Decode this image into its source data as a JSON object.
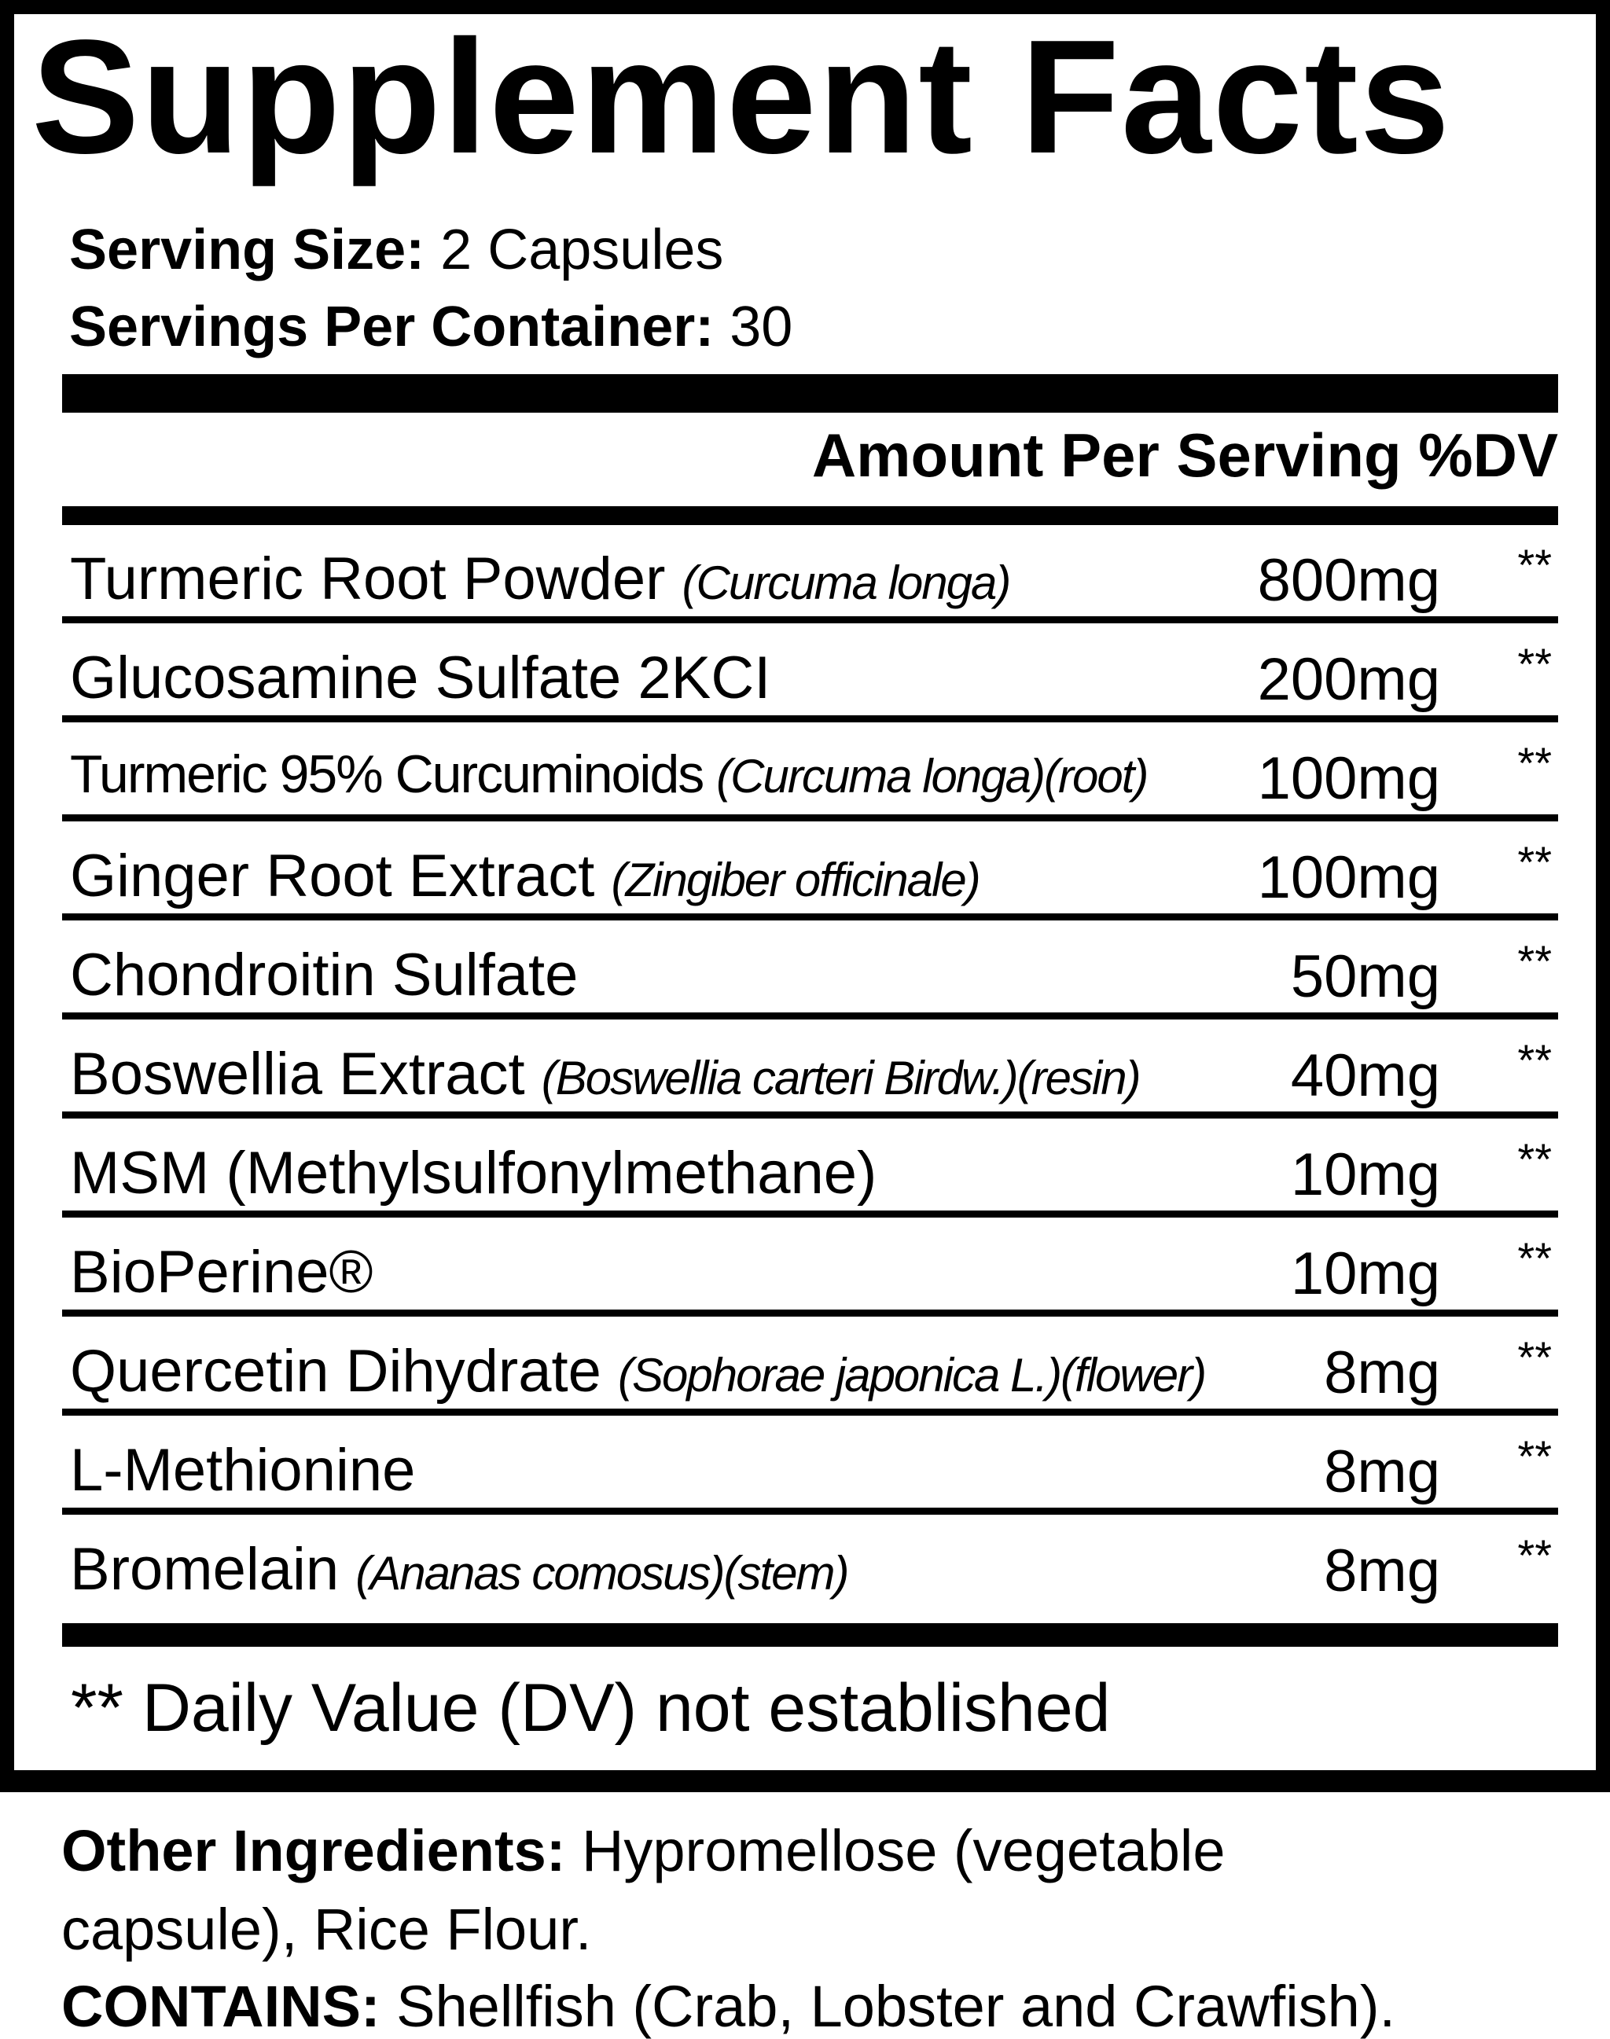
{
  "title": "Supplement Facts",
  "serving_size": {
    "label": "Serving Size:",
    "value": "2 Capsules"
  },
  "servings_per_container": {
    "label": "Servings Per Container:",
    "value": "30"
  },
  "header": "Amount Per Serving %DV",
  "rows": [
    {
      "name": "Turmeric Root Powder ",
      "latin": "(Curcuma longa)",
      "amount": "800mg",
      "dv": "**"
    },
    {
      "name": "Glucosamine Sulfate 2KCI",
      "latin": "",
      "amount": "200mg",
      "dv": "**"
    },
    {
      "name": "Turmeric 95% Curcuminoids ",
      "latin": "(Curcuma longa)(root)",
      "amount": "100mg",
      "dv": "**"
    },
    {
      "name": "Ginger Root Extract ",
      "latin": "(Zingiber officinale)",
      "amount": "100mg",
      "dv": "**"
    },
    {
      "name": "Chondroitin Sulfate",
      "latin": "",
      "amount": "50mg",
      "dv": "**"
    },
    {
      "name": "Boswellia Extract ",
      "latin": "(Boswellia carteri Birdw.)(resin)",
      "amount": "40mg",
      "dv": "**"
    },
    {
      "name": "MSM (Methylsulfonylmethane)",
      "latin": "",
      "amount": "10mg",
      "dv": "**"
    },
    {
      "name": "BioPerine®",
      "latin": "",
      "amount": "10mg",
      "dv": "**"
    },
    {
      "name": "Quercetin Dihydrate ",
      "latin": "(Sophorae japonica L.)(flower)",
      "amount": "8mg",
      "dv": "**"
    },
    {
      "name": "L-Methionine",
      "latin": "",
      "amount": "8mg",
      "dv": "**"
    },
    {
      "name": "Bromelain ",
      "latin": "(Ananas comosus)(stem)",
      "amount": "8mg",
      "dv": "**"
    }
  ],
  "footnote": "** Daily Value (DV) not established",
  "other_ingredients": {
    "label": "Other Ingredients:",
    "line1": " Hypromellose (vegetable",
    "line2": "capsule), Rice Flour."
  },
  "contains": {
    "label": "CONTAINS:",
    "value": " Shellfish (Crab, Lobster and Crawfish)."
  }
}
